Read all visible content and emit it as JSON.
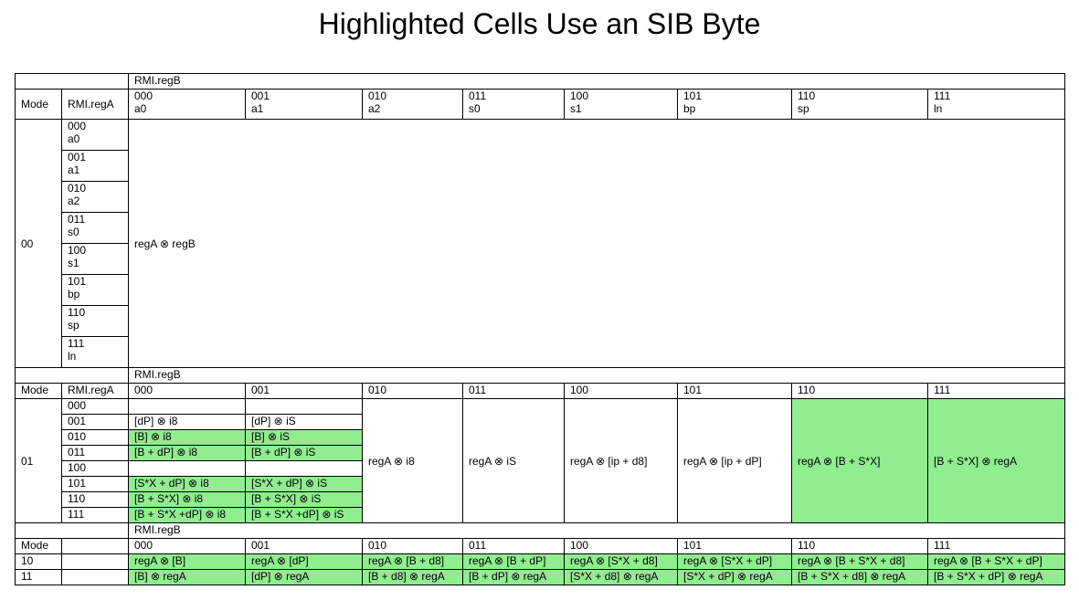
{
  "title": "Highlighted Cells Use an SIB Byte",
  "labels": {
    "rmi_regb": "RMI.regB",
    "mode": "Mode",
    "rmi_rega": "RMI.regA"
  },
  "regb_bits": [
    "000",
    "001",
    "010",
    "011",
    "100",
    "101",
    "110",
    "111"
  ],
  "regb_names": [
    "a0",
    "a1",
    "a2",
    "s0",
    "s1",
    "bp",
    "sp",
    "ln"
  ],
  "mode00": {
    "mode": "00",
    "rega_rows": [
      {
        "bits": "000",
        "name": "a0"
      },
      {
        "bits": "001",
        "name": "a1"
      },
      {
        "bits": "010",
        "name": "a2"
      },
      {
        "bits": "011",
        "name": "s0"
      },
      {
        "bits": "100",
        "name": "s1"
      },
      {
        "bits": "101",
        "name": "bp"
      },
      {
        "bits": "110",
        "name": "sp"
      },
      {
        "bits": "111",
        "name": "ln"
      }
    ],
    "value": "regA ⊗ regB"
  },
  "mode01": {
    "mode": "01",
    "rega_bits": [
      "000",
      "001",
      "010",
      "011",
      "100",
      "101",
      "110",
      "111"
    ],
    "col000": [
      "",
      "[dP] ⊗ i8",
      "[B] ⊗ i8",
      "[B + dP] ⊗ i8",
      "",
      "[S*X + dP] ⊗ i8",
      "[B + S*X] ⊗ i8",
      "[B + S*X +dP] ⊗ i8"
    ],
    "col001": [
      "",
      "[dP] ⊗ iS",
      "[B] ⊗ iS",
      "[B + dP] ⊗ iS",
      "",
      "[S*X + dP] ⊗ iS",
      "[B + S*X] ⊗ iS",
      "[B + S*X +dP] ⊗ iS"
    ],
    "col000_green": [
      false,
      false,
      true,
      true,
      false,
      true,
      true,
      true
    ],
    "rest": [
      "regA ⊗ i8",
      "regA ⊗ iS",
      "regA ⊗ [ip + d8]",
      "regA ⊗ [ip + dP]",
      "regA ⊗ [B + S*X]",
      "[B + S*X] ⊗ regA"
    ]
  },
  "mode10": {
    "mode": "10",
    "cells": [
      "regA ⊗ [B]",
      "regA ⊗ [dP]",
      "regA ⊗ [B + d8]",
      "regA ⊗ [B + dP]",
      "regA ⊗ [S*X + d8]",
      "regA ⊗ [S*X + dP]",
      "regA ⊗ [B + S*X + d8]",
      "regA ⊗ [B + S*X + dP]"
    ]
  },
  "mode11": {
    "mode": "11",
    "cells": [
      "[B] ⊗ regA",
      "[dP] ⊗ regA",
      "[B + d8] ⊗ regA",
      "[B + dP] ⊗ regA",
      "[S*X + d8] ⊗ regA",
      "[S*X + dP] ⊗ regA",
      "[B + S*X + d8] ⊗ regA",
      "[B + S*X + dP] ⊗ regA"
    ]
  },
  "colors": {
    "highlight": "#90ee90",
    "border": "#000000"
  }
}
